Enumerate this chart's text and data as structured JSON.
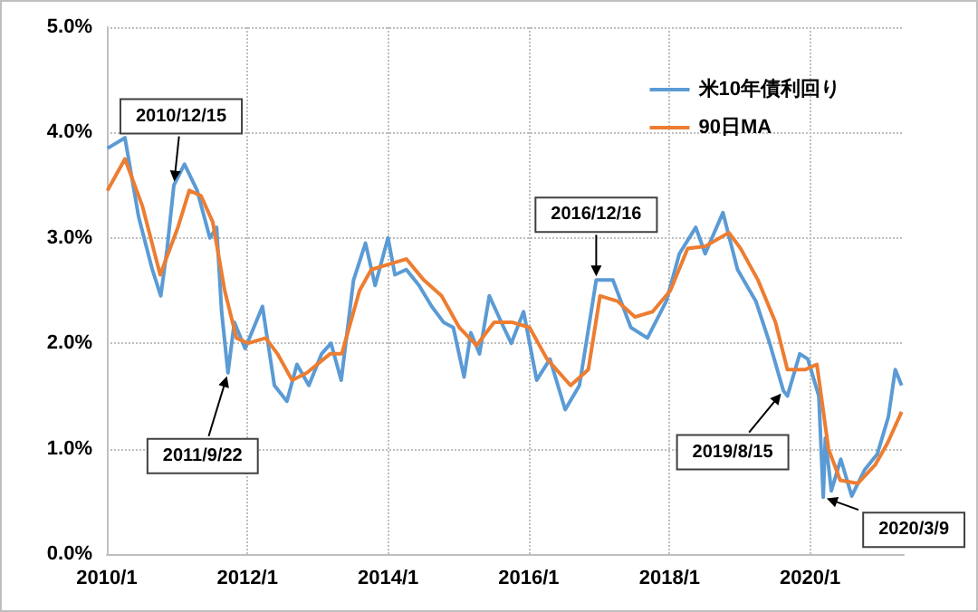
{
  "chart_data": {
    "type": "line",
    "x": [
      "2010-01-04",
      "2010-04-05",
      "2010-06-15",
      "2010-08-25",
      "2010-10-08",
      "2010-11-10",
      "2010-12-15",
      "2011-02-08",
      "2011-04-15",
      "2011-06-20",
      "2011-07-25",
      "2011-08-20",
      "2011-09-22",
      "2011-10-25",
      "2011-12-20",
      "2012-03-19",
      "2012-05-20",
      "2012-07-24",
      "2012-09-14",
      "2012-11-15",
      "2013-01-20",
      "2013-03-10",
      "2013-05-02",
      "2013-07-05",
      "2013-09-05",
      "2013-10-25",
      "2013-12-31",
      "2014-02-05",
      "2014-04-05",
      "2014-06-10",
      "2014-08-15",
      "2014-10-15",
      "2014-12-05",
      "2015-01-30",
      "2015-03-06",
      "2015-04-20",
      "2015-06-10",
      "2015-08-24",
      "2015-10-02",
      "2015-12-05",
      "2016-02-11",
      "2016-04-20",
      "2016-07-08",
      "2016-09-20",
      "2016-11-20",
      "2016-12-16",
      "2017-03-13",
      "2017-06-14",
      "2017-09-08",
      "2017-12-15",
      "2018-02-21",
      "2018-05-17",
      "2018-07-05",
      "2018-10-05",
      "2018-12-20",
      "2019-03-25",
      "2019-06-05",
      "2019-08-15",
      "2019-09-05",
      "2019-11-08",
      "2019-12-20",
      "2020-02-15",
      "2020-03-09",
      "2020-03-20",
      "2020-04-20",
      "2020-06-08",
      "2020-08-04",
      "2020-10-10",
      "2020-12-15",
      "2021-02-10",
      "2021-03-18",
      "2021-04-20"
    ],
    "xlim": [
      "2010-01-01",
      "2021-05-01"
    ],
    "xticks": [
      {
        "value": "2010-01-01",
        "label": "2010/1"
      },
      {
        "value": "2012-01-01",
        "label": "2012/1"
      },
      {
        "value": "2014-01-01",
        "label": "2014/1"
      },
      {
        "value": "2016-01-01",
        "label": "2016/1"
      },
      {
        "value": "2018-01-01",
        "label": "2018/1"
      },
      {
        "value": "2020-01-01",
        "label": "2020/1"
      }
    ],
    "ylim": [
      0,
      5
    ],
    "yticks": [
      {
        "value": 0,
        "label": "0.0%"
      },
      {
        "value": 1,
        "label": "1.0%"
      },
      {
        "value": 2,
        "label": "2.0%"
      },
      {
        "value": 3,
        "label": "3.0%"
      },
      {
        "value": 4,
        "label": "4.0%"
      },
      {
        "value": 5,
        "label": "5.0%"
      }
    ],
    "series": [
      {
        "name": "米10年債利回り",
        "color": "#5b9bd5",
        "values": [
          3.85,
          3.95,
          3.2,
          2.7,
          2.45,
          2.9,
          3.5,
          3.7,
          3.45,
          3.0,
          3.1,
          2.3,
          1.72,
          2.2,
          1.95,
          2.35,
          1.6,
          1.45,
          1.8,
          1.6,
          1.9,
          2.0,
          1.65,
          2.6,
          2.95,
          2.55,
          3.0,
          2.65,
          2.7,
          2.55,
          2.35,
          2.2,
          2.15,
          1.68,
          2.1,
          1.9,
          2.45,
          2.15,
          2.0,
          2.3,
          1.65,
          1.85,
          1.37,
          1.6,
          2.3,
          2.6,
          2.6,
          2.15,
          2.05,
          2.4,
          2.85,
          3.1,
          2.85,
          3.24,
          2.7,
          2.4,
          2.0,
          1.55,
          1.5,
          1.9,
          1.85,
          1.5,
          0.54,
          1.1,
          0.6,
          0.9,
          0.55,
          0.8,
          0.95,
          1.3,
          1.75,
          1.6
        ]
      },
      {
        "name": "90日MA",
        "color": "#ed7d31",
        "x": [
          "2010-01-04",
          "2010-04-05",
          "2010-07-05",
          "2010-10-05",
          "2011-01-05",
          "2011-03-05",
          "2011-05-05",
          "2011-07-05",
          "2011-09-05",
          "2011-11-05",
          "2012-01-05",
          "2012-04-05",
          "2012-06-05",
          "2012-08-20",
          "2012-11-05",
          "2013-03-05",
          "2013-05-05",
          "2013-08-05",
          "2013-10-05",
          "2014-01-05",
          "2014-04-05",
          "2014-07-05",
          "2014-10-05",
          "2015-01-05",
          "2015-04-05",
          "2015-07-05",
          "2015-10-05",
          "2016-01-05",
          "2016-04-05",
          "2016-08-05",
          "2016-11-05",
          "2017-01-05",
          "2017-04-05",
          "2017-07-05",
          "2017-10-05",
          "2018-01-05",
          "2018-04-05",
          "2018-07-05",
          "2018-11-05",
          "2019-01-05",
          "2019-04-05",
          "2019-07-05",
          "2019-09-05",
          "2019-12-05",
          "2020-02-05",
          "2020-04-05",
          "2020-06-05",
          "2020-09-05",
          "2020-12-05",
          "2021-02-05",
          "2021-04-20"
        ],
        "values": [
          3.45,
          3.75,
          3.3,
          2.65,
          3.1,
          3.45,
          3.4,
          3.15,
          2.5,
          2.05,
          2.0,
          2.05,
          1.9,
          1.65,
          1.72,
          1.9,
          1.9,
          2.5,
          2.7,
          2.75,
          2.8,
          2.6,
          2.45,
          2.15,
          1.98,
          2.2,
          2.2,
          2.15,
          1.85,
          1.6,
          1.75,
          2.45,
          2.4,
          2.25,
          2.3,
          2.5,
          2.9,
          2.92,
          3.05,
          2.9,
          2.6,
          2.2,
          1.75,
          1.75,
          1.8,
          1.0,
          0.7,
          0.67,
          0.85,
          1.05,
          1.35
        ]
      }
    ],
    "annotations": [
      {
        "text": "2010/12/15",
        "x": "2010-12-15",
        "y": 3.5
      },
      {
        "text": "2011/9/22",
        "x": "2011-09-22",
        "y": 1.72
      },
      {
        "text": "2016/12/16",
        "x": "2016-12-16",
        "y": 2.6
      },
      {
        "text": "2019/8/15",
        "x": "2019-08-15",
        "y": 1.55
      },
      {
        "text": "2020/3/9",
        "x": "2020-03-09",
        "y": 0.54
      }
    ],
    "grid": true,
    "legend": "top right",
    "marker": "none",
    "line_style": "solid"
  }
}
